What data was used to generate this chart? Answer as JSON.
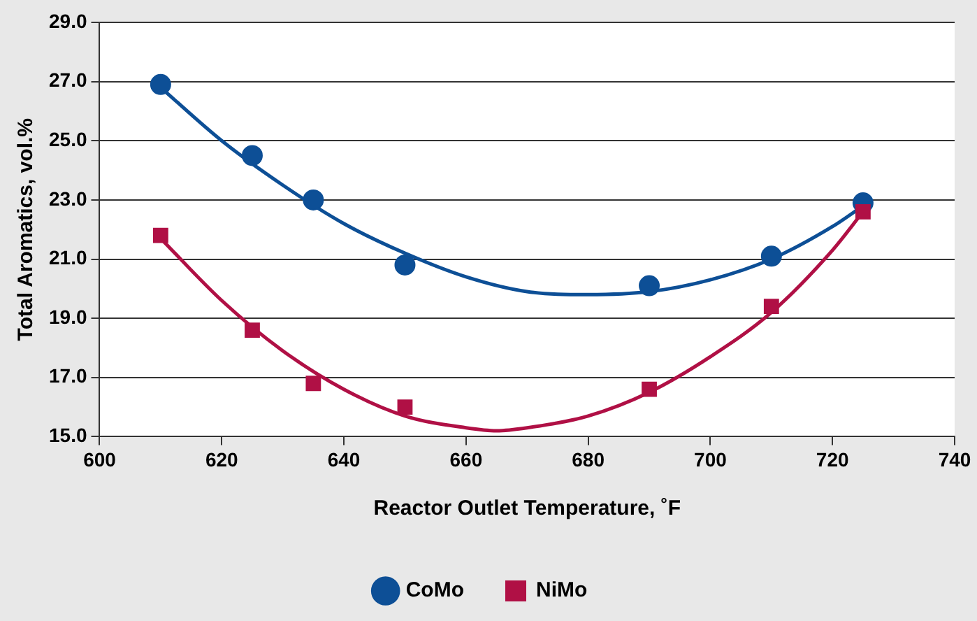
{
  "chart_data": {
    "type": "scatter",
    "xlabel": "Reactor Outlet Temperature, ˚F",
    "ylabel": "Total Aromatics, vol.%",
    "xlim": [
      600,
      740
    ],
    "xticks": [
      600,
      620,
      640,
      660,
      680,
      700,
      720,
      740
    ],
    "ylim": [
      15,
      29
    ],
    "yticks": [
      {
        "value": 15,
        "label": "15.0"
      },
      {
        "value": 17,
        "label": "17.0"
      },
      {
        "value": 19,
        "label": "19.0"
      },
      {
        "value": 21,
        "label": "21.0"
      },
      {
        "value": 23,
        "label": "23.0"
      },
      {
        "value": 25,
        "label": "25.0"
      },
      {
        "value": 27,
        "label": "27.0"
      },
      {
        "value": 29,
        "label": "29.0"
      }
    ],
    "grid": "y",
    "legend": "bottom",
    "series": [
      {
        "name": "CoMo",
        "color": "#0d4f96",
        "marker": "circle",
        "x": [
          610,
          625,
          635,
          650,
          690,
          710,
          725
        ],
        "values": [
          26.9,
          24.5,
          23.0,
          20.8,
          20.1,
          21.1,
          22.9
        ]
      },
      {
        "name": "NiMo",
        "color": "#b01045",
        "marker": "square",
        "x": [
          610,
          625,
          635,
          650,
          690,
          710,
          725
        ],
        "values": [
          21.8,
          18.6,
          16.8,
          16.0,
          16.6,
          19.4,
          22.6
        ]
      },
      {
        "type": "line",
        "color": "#0d4f96",
        "marker": "none",
        "x": [
          610,
          620,
          630,
          640,
          650,
          660,
          670,
          680,
          690,
          700,
          710,
          720,
          725
        ],
        "values": [
          26.8,
          25.0,
          23.5,
          22.2,
          21.2,
          20.4,
          19.9,
          19.8,
          19.9,
          20.3,
          21.0,
          22.1,
          22.8
        ]
      },
      {
        "type": "line",
        "color": "#b01045",
        "marker": "none",
        "x": [
          610,
          620,
          630,
          640,
          650,
          660,
          665,
          670,
          680,
          690,
          700,
          710,
          720,
          725
        ],
        "values": [
          21.7,
          19.6,
          17.9,
          16.6,
          15.7,
          15.3,
          15.2,
          15.3,
          15.7,
          16.5,
          17.7,
          19.2,
          21.3,
          22.6
        ]
      }
    ]
  }
}
